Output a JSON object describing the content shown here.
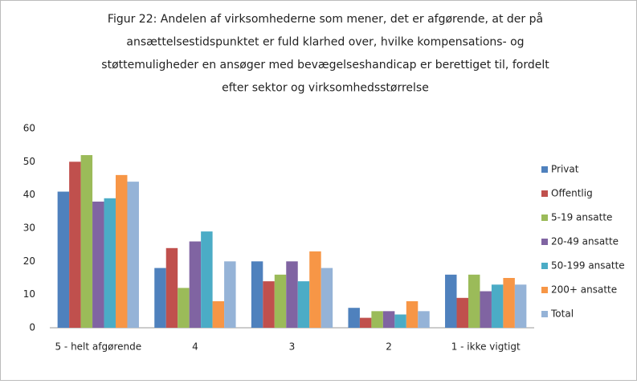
{
  "chart_data": {
    "type": "bar",
    "title": [
      "Figur 22: Andelen af virksomhederne som mener, det er afgørende, at der på",
      "ansættelsestidspunktet er fuld klarhed over, hvilke kompensations- og",
      "støttemuligheder en ansøger med bevægelseshandicap er berettiget til, fordelt",
      "efter sektor og virksomhedsstørrelse"
    ],
    "categories": [
      "5 - helt afgørende",
      "4",
      "3",
      "2",
      "1 - ikke vigtigt"
    ],
    "series": [
      {
        "name": "Privat",
        "color": "#4f81bd",
        "values": [
          41,
          18,
          20,
          6,
          16
        ]
      },
      {
        "name": "Offentlig",
        "color": "#c0504d",
        "values": [
          50,
          24,
          14,
          3,
          9
        ]
      },
      {
        "name": "5-19 ansatte",
        "color": "#9bbb59",
        "values": [
          52,
          12,
          16,
          5,
          16
        ]
      },
      {
        "name": "20-49 ansatte",
        "color": "#8064a2",
        "values": [
          38,
          26,
          20,
          5,
          11
        ]
      },
      {
        "name": "50-199 ansatte",
        "color": "#4bacc6",
        "values": [
          39,
          29,
          14,
          4,
          13
        ]
      },
      {
        "name": "200+ ansatte",
        "color": "#f79646",
        "values": [
          46,
          8,
          23,
          8,
          15
        ]
      },
      {
        "name": "Total",
        "color": "#95b3d7",
        "values": [
          44,
          20,
          18,
          5,
          13
        ]
      }
    ],
    "ylim": [
      0,
      60
    ],
    "yticks": [
      0,
      10,
      20,
      30,
      40,
      50,
      60
    ],
    "grid": false,
    "legend": "right"
  }
}
